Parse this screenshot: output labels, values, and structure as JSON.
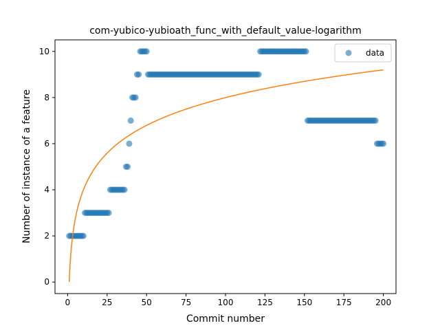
{
  "chart_data": {
    "type": "scatter",
    "title": "com-yubico-yubioath_func_with_default_value-logarithm",
    "xlabel": "Commit number",
    "ylabel": "Number of instance of a feature",
    "xlim": [
      -8,
      208
    ],
    "ylim": [
      -0.5,
      10.5
    ],
    "xticks": [
      0,
      25,
      50,
      75,
      100,
      125,
      150,
      175,
      200
    ],
    "yticks": [
      0,
      2,
      4,
      6,
      8,
      10
    ],
    "grid": false,
    "legend": {
      "position": "top-right",
      "entries": [
        "data"
      ]
    },
    "colors": {
      "data": "#1f77b4",
      "fit": "#ff7f0e"
    },
    "series": [
      {
        "name": "data",
        "style": "scatter",
        "segments": [
          {
            "x_from": 1,
            "x_to": 10,
            "y": 2
          },
          {
            "x_from": 11,
            "x_to": 26,
            "y": 3
          },
          {
            "x_from": 27,
            "x_to": 36,
            "y": 4
          },
          {
            "x_from": 37,
            "x_to": 38,
            "y": 5
          },
          {
            "x_from": 39,
            "x_to": 39,
            "y": 6
          },
          {
            "x_from": 40,
            "x_to": 40,
            "y": 7
          },
          {
            "x_from": 41,
            "x_to": 43,
            "y": 8
          },
          {
            "x_from": 44,
            "x_to": 45,
            "y": 9
          },
          {
            "x_from": 46,
            "x_to": 50,
            "y": 10
          },
          {
            "x_from": 51,
            "x_to": 121,
            "y": 9
          },
          {
            "x_from": 122,
            "x_to": 151,
            "y": 10
          },
          {
            "x_from": 152,
            "x_to": 195,
            "y": 7
          },
          {
            "x_from": 196,
            "x_to": 200,
            "y": 6
          }
        ]
      },
      {
        "style": "line",
        "model": "logarithmic",
        "x_range": [
          1,
          200
        ],
        "y_at_x1": 0,
        "y_at_x200": 9.2
      }
    ]
  }
}
